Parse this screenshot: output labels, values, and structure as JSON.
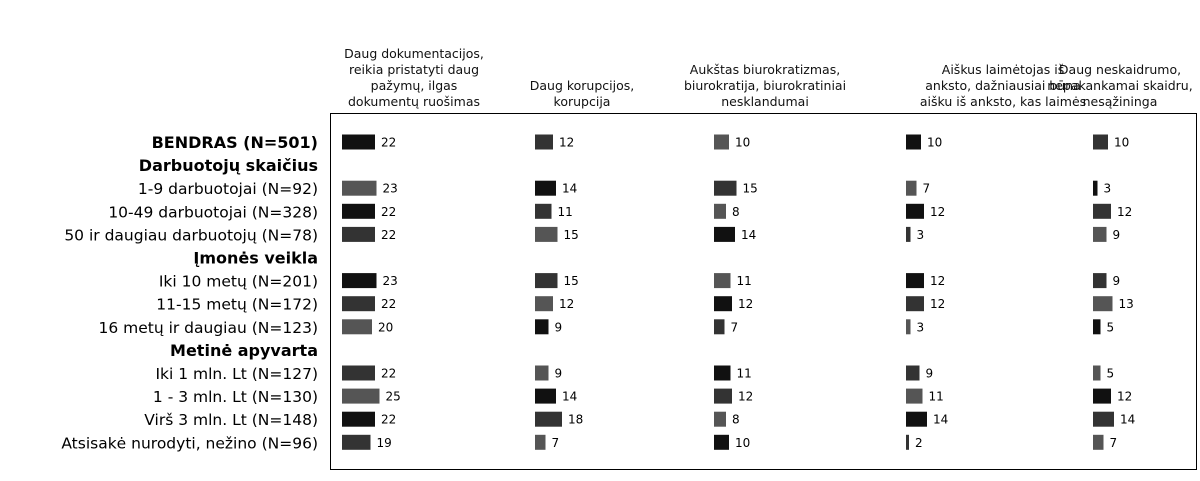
{
  "chart_data": {
    "type": "bar",
    "columns": [
      "Daug dokumentacijos, reikia pristatyti daug pažymų, ilgas dokumentų ruošimas",
      "Daug korupcijos, korupcija",
      "Aukštas biurokratizmas, biurokratija, biurokratiniai nesklandumai",
      "Aiškus laimėtojas iš anksto, dažniausiai būna aišku iš anksto, kas laimės",
      "Daug neskaidrumo, nepakankamai skaidru, nesąžininga"
    ],
    "column_lines": [
      [
        "Daug dokumentacijos,",
        "reikia pristatyti daug",
        "pažymų, ilgas",
        "dokumentų ruošimas"
      ],
      [
        "Daug korupcijos,",
        "korupcija"
      ],
      [
        "Aukštas biurokratizmas,",
        "biurokratija, biurokratiniai",
        "nesklandumai"
      ],
      [
        "Aiškus laimėtojas iš",
        "anksto, dažniausiai būna",
        "aišku iš anksto, kas laimės"
      ],
      [
        "Daug neskaidrumo,",
        "nepakankamai skaidru,",
        "nesąžininga"
      ]
    ],
    "rows": [
      {
        "label": "BENDRAS (N=501)",
        "bold": true,
        "values": [
          22,
          12,
          10,
          10,
          10
        ]
      },
      {
        "label": "Darbuotojų skaičius",
        "heading": true
      },
      {
        "label": "1-9 darbuotojai (N=92)",
        "values": [
          23,
          14,
          15,
          7,
          3
        ]
      },
      {
        "label": "10-49 darbuotojai (N=328)",
        "values": [
          22,
          11,
          8,
          12,
          12
        ]
      },
      {
        "label": "50 ir daugiau darbuotojų (N=78)",
        "values": [
          22,
          15,
          14,
          3,
          9
        ]
      },
      {
        "label": "Įmonės veikla",
        "heading": true
      },
      {
        "label": "Iki 10 metų (N=201)",
        "values": [
          23,
          15,
          11,
          12,
          9
        ]
      },
      {
        "label": "11-15 metų (N=172)",
        "values": [
          22,
          12,
          12,
          12,
          13
        ]
      },
      {
        "label": "16 metų ir daugiau (N=123)",
        "values": [
          20,
          9,
          7,
          3,
          5
        ]
      },
      {
        "label": "Metinė apyvarta",
        "heading": true
      },
      {
        "label": "Iki 1 mln. Lt (N=127)",
        "values": [
          22,
          9,
          11,
          9,
          5
        ]
      },
      {
        "label": "1 - 3 mln. Lt (N=130)",
        "values": [
          25,
          14,
          12,
          11,
          12
        ]
      },
      {
        "label": "Virš 3 mln. Lt (N=148)",
        "values": [
          22,
          18,
          8,
          14,
          14
        ]
      },
      {
        "label": "Atsisakė nurodyti, nežino (N=96)",
        "values": [
          19,
          7,
          10,
          2,
          7
        ]
      }
    ],
    "bar_colors": [
      "#111111",
      "#333333",
      "#555555"
    ],
    "legend": "none",
    "grid": false
  }
}
